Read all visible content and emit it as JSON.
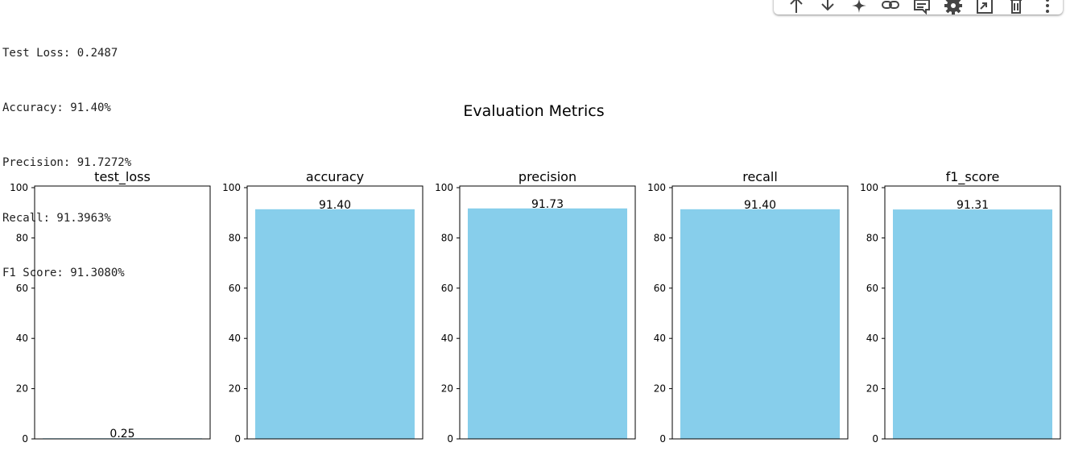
{
  "output": {
    "lines": [
      "Test Loss: 0.2487",
      "Accuracy: 91.40%",
      "Precision: 91.7272%",
      "Recall: 91.3963%",
      "F1 Score: 91.3080%"
    ]
  },
  "toolbar": {
    "icons": [
      "move-up-icon",
      "move-down-icon",
      "sparkle-icon",
      "link-icon",
      "comment-icon",
      "settings-icon",
      "mirror-cell-icon",
      "delete-icon",
      "more-options-icon"
    ]
  },
  "chart_data": {
    "type": "bar",
    "title": "Evaluation Metrics",
    "bar_color": "#87ceeb",
    "ylim": [
      0,
      100
    ],
    "yticks": [
      0,
      20,
      40,
      60,
      80,
      100
    ],
    "subplots": [
      {
        "title": "test_loss",
        "value": 0.25,
        "label": "0.25"
      },
      {
        "title": "accuracy",
        "value": 91.4,
        "label": "91.40"
      },
      {
        "title": "precision",
        "value": 91.73,
        "label": "91.73"
      },
      {
        "title": "recall",
        "value": 91.4,
        "label": "91.40"
      },
      {
        "title": "f1_score",
        "value": 91.31,
        "label": "91.31"
      }
    ]
  }
}
